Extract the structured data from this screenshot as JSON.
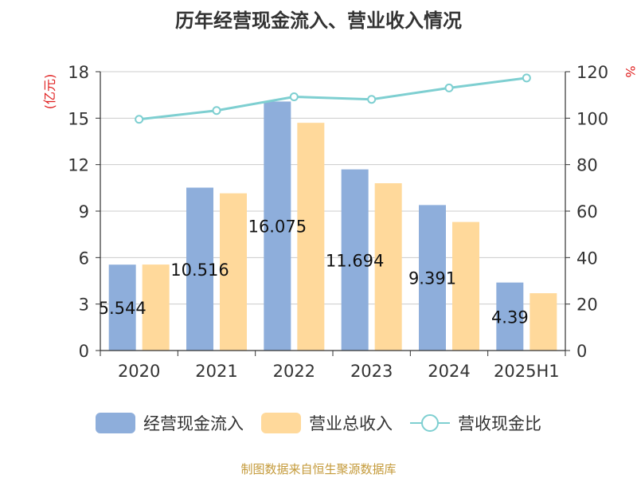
{
  "chart_data": {
    "type": "bar",
    "title": "历年经营现金流入、营业收入情况",
    "categories": [
      "2020",
      "2021",
      "2022",
      "2023",
      "2024",
      "2025H1"
    ],
    "left_axis": {
      "label": "(亿元)",
      "ylim": [
        0,
        18
      ],
      "ticks": [
        0,
        3,
        6,
        9,
        12,
        15,
        18
      ]
    },
    "right_axis": {
      "label": "%",
      "ylim": [
        0,
        120
      ],
      "ticks": [
        0,
        20,
        40,
        60,
        80,
        100,
        120
      ]
    },
    "series": [
      {
        "name": "经营现金流入",
        "type": "bar",
        "axis": "left",
        "color": "#8eaedb",
        "values": [
          5.544,
          10.516,
          16.075,
          11.694,
          9.391,
          4.39
        ],
        "labels": [
          "5.544",
          "10.516",
          "16.075",
          "11.694",
          "9.391",
          "4.39"
        ]
      },
      {
        "name": "营业总收入",
        "type": "bar",
        "axis": "left",
        "color": "#ffd99b",
        "values": [
          5.55,
          10.15,
          14.7,
          10.8,
          8.3,
          3.7
        ]
      },
      {
        "name": "营收现金比",
        "type": "line",
        "axis": "right",
        "color": "#7ecfd1",
        "values": [
          99.5,
          103.3,
          109.2,
          108.1,
          113.0,
          117.3
        ]
      }
    ],
    "grid": true,
    "legend": "bottom"
  },
  "source": "制图数据来自恒生聚源数据库"
}
